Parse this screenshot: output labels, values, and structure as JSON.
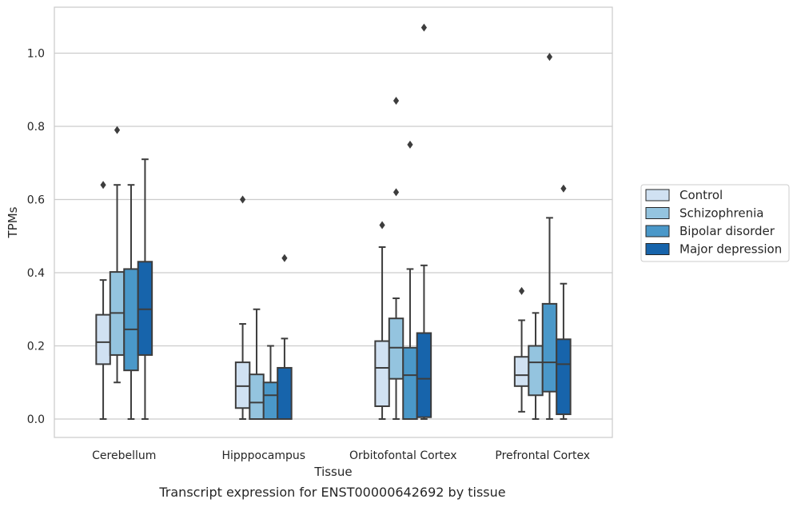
{
  "caption": "Transcript expression for ENST00000642692 by tissue",
  "chart_data": {
    "type": "box",
    "xlabel": "Tissue",
    "ylabel": "TPMs",
    "ylim": [
      -0.05,
      1.13
    ],
    "yticks": [
      0.0,
      0.2,
      0.4,
      0.6,
      0.8,
      1.0
    ],
    "ytick_labels": [
      "0.0",
      "0.2",
      "0.4",
      "0.6",
      "0.8",
      "1.0"
    ],
    "grid": "horizontal",
    "legend_position": "right",
    "categories": [
      "Cerebellum",
      "Hipppocampus",
      "Orbitofontal Cortex",
      "Prefrontal Cortex"
    ],
    "series": [
      {
        "name": "Control",
        "color": "#d0e1f2",
        "boxes": [
          {
            "whisker_low": 0.0,
            "q1": 0.15,
            "median": 0.21,
            "q3": 0.285,
            "whisker_high": 0.38,
            "outliers": [
              0.64
            ]
          },
          {
            "whisker_low": 0.0,
            "q1": 0.03,
            "median": 0.09,
            "q3": 0.155,
            "whisker_high": 0.26,
            "outliers": [
              0.6
            ]
          },
          {
            "whisker_low": 0.0,
            "q1": 0.035,
            "median": 0.14,
            "q3": 0.213,
            "whisker_high": 0.47,
            "outliers": [
              0.53
            ]
          },
          {
            "whisker_low": 0.02,
            "q1": 0.09,
            "median": 0.12,
            "q3": 0.17,
            "whisker_high": 0.27,
            "outliers": [
              0.35
            ]
          }
        ]
      },
      {
        "name": "Schizophrenia",
        "color": "#94c4df",
        "boxes": [
          {
            "whisker_low": 0.1,
            "q1": 0.175,
            "median": 0.29,
            "q3": 0.402,
            "whisker_high": 0.64,
            "outliers": [
              0.79
            ]
          },
          {
            "whisker_low": 0.0,
            "q1": 0.0,
            "median": 0.045,
            "q3": 0.122,
            "whisker_high": 0.3,
            "outliers": []
          },
          {
            "whisker_low": 0.0,
            "q1": 0.11,
            "median": 0.195,
            "q3": 0.275,
            "whisker_high": 0.33,
            "outliers": [
              0.62,
              0.87
            ]
          },
          {
            "whisker_low": 0.0,
            "q1": 0.065,
            "median": 0.155,
            "q3": 0.2,
            "whisker_high": 0.29,
            "outliers": []
          }
        ]
      },
      {
        "name": "Bipolar disorder",
        "color": "#4a98c9",
        "boxes": [
          {
            "whisker_low": 0.0,
            "q1": 0.133,
            "median": 0.245,
            "q3": 0.41,
            "whisker_high": 0.64,
            "outliers": []
          },
          {
            "whisker_low": 0.0,
            "q1": 0.0,
            "median": 0.065,
            "q3": 0.1,
            "whisker_high": 0.2,
            "outliers": []
          },
          {
            "whisker_low": 0.0,
            "q1": 0.0,
            "median": 0.12,
            "q3": 0.195,
            "whisker_high": 0.41,
            "outliers": [
              0.75
            ]
          },
          {
            "whisker_low": 0.0,
            "q1": 0.075,
            "median": 0.155,
            "q3": 0.315,
            "whisker_high": 0.55,
            "outliers": [
              0.99
            ]
          }
        ]
      },
      {
        "name": "Major depression",
        "color": "#1764ab",
        "boxes": [
          {
            "whisker_low": 0.0,
            "q1": 0.175,
            "median": 0.3,
            "q3": 0.43,
            "whisker_high": 0.71,
            "outliers": []
          },
          {
            "whisker_low": 0.0,
            "q1": 0.0,
            "median": 0.0,
            "q3": 0.14,
            "whisker_high": 0.22,
            "outliers": [
              0.44
            ]
          },
          {
            "whisker_low": 0.0,
            "q1": 0.005,
            "median": 0.11,
            "q3": 0.235,
            "whisker_high": 0.42,
            "outliers": [
              1.07
            ]
          },
          {
            "whisker_low": 0.0,
            "q1": 0.013,
            "median": 0.15,
            "q3": 0.218,
            "whisker_high": 0.37,
            "outliers": [
              0.63
            ]
          }
        ]
      }
    ]
  }
}
